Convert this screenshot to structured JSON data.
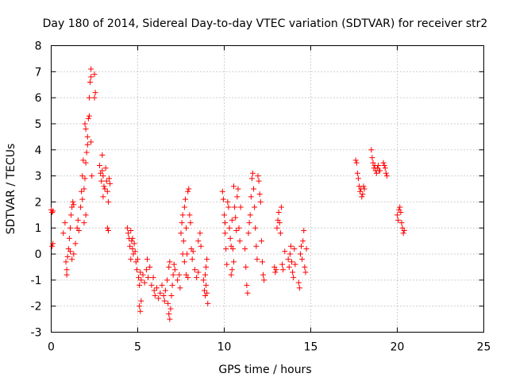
{
  "chart_data": {
    "type": "scatter",
    "title": "Day 180 of 2014, Sidereal Day-to-day VTEC variation (SDTVAR) for receiver str2",
    "xlabel": "GPS time / hours",
    "ylabel": "SDTVAR / TECUs",
    "xlim": [
      0,
      25
    ],
    "ylim": [
      -3,
      8
    ],
    "xticks": [
      0,
      5,
      10,
      15,
      20,
      25
    ],
    "yticks": [
      -3,
      -2,
      -1,
      0,
      1,
      2,
      3,
      4,
      5,
      6,
      7,
      8
    ],
    "grid": true,
    "marker": "+",
    "marker_color": "#ff0000",
    "series": [
      {
        "name": "SDTVAR",
        "points": [
          [
            0.0,
            1.7
          ],
          [
            0.05,
            1.6
          ],
          [
            0.1,
            0.4
          ],
          [
            0.05,
            0.3
          ],
          [
            0.1,
            1.65
          ],
          [
            0.7,
            0.8
          ],
          [
            0.8,
            1.2
          ],
          [
            0.85,
            -0.3
          ],
          [
            0.9,
            -0.6
          ],
          [
            0.9,
            -0.8
          ],
          [
            0.95,
            -0.1
          ],
          [
            1.0,
            0.2
          ],
          [
            1.05,
            0.6
          ],
          [
            1.1,
            1.0
          ],
          [
            1.15,
            1.5
          ],
          [
            1.2,
            1.8
          ],
          [
            1.25,
            2.0
          ],
          [
            1.3,
            1.9
          ],
          [
            1.1,
            0.1
          ],
          [
            1.2,
            -0.2
          ],
          [
            1.3,
            0.0
          ],
          [
            1.4,
            0.4
          ],
          [
            1.5,
            1.0
          ],
          [
            1.55,
            1.3
          ],
          [
            1.6,
            0.9
          ],
          [
            1.7,
            1.8
          ],
          [
            1.75,
            2.4
          ],
          [
            1.8,
            3.0
          ],
          [
            1.85,
            3.6
          ],
          [
            1.9,
            2.5
          ],
          [
            1.95,
            2.9
          ],
          [
            2.0,
            3.5
          ],
          [
            2.05,
            3.9
          ],
          [
            2.1,
            4.5
          ],
          [
            2.0,
            4.8
          ],
          [
            1.95,
            5.0
          ],
          [
            2.1,
            4.2
          ],
          [
            2.15,
            5.2
          ],
          [
            2.2,
            6.0
          ],
          [
            2.25,
            6.6
          ],
          [
            2.3,
            7.1
          ],
          [
            2.3,
            6.8
          ],
          [
            2.2,
            5.3
          ],
          [
            2.3,
            4.3
          ],
          [
            2.35,
            3.0
          ],
          [
            2.0,
            1.5
          ],
          [
            1.9,
            1.2
          ],
          [
            1.8,
            2.1
          ],
          [
            2.5,
            6.9
          ],
          [
            2.55,
            6.2
          ],
          [
            2.5,
            6.0
          ],
          [
            2.8,
            3.4
          ],
          [
            2.85,
            3.1
          ],
          [
            2.9,
            2.8
          ],
          [
            2.95,
            3.2
          ],
          [
            3.0,
            3.0
          ],
          [
            3.05,
            2.6
          ],
          [
            3.1,
            2.5
          ],
          [
            3.15,
            3.3
          ],
          [
            3.2,
            2.8
          ],
          [
            3.25,
            2.4
          ],
          [
            3.3,
            2.0
          ],
          [
            3.35,
            2.9
          ],
          [
            3.4,
            2.7
          ],
          [
            2.95,
            3.8
          ],
          [
            3.0,
            2.2
          ],
          [
            3.25,
            1.0
          ],
          [
            3.3,
            0.9
          ],
          [
            4.4,
            1.0
          ],
          [
            4.45,
            0.8
          ],
          [
            4.5,
            0.6
          ],
          [
            4.55,
            0.3
          ],
          [
            4.6,
            0.9
          ],
          [
            4.65,
            0.5
          ],
          [
            4.7,
            0.2
          ],
          [
            4.75,
            0.0
          ],
          [
            4.8,
            0.4
          ],
          [
            4.85,
            0.1
          ],
          [
            4.9,
            -0.3
          ],
          [
            4.95,
            -0.6
          ],
          [
            5.0,
            -0.2
          ],
          [
            4.6,
            -0.2
          ],
          [
            4.7,
            0.6
          ],
          [
            5.05,
            -0.9
          ],
          [
            5.1,
            -1.2
          ],
          [
            5.15,
            -0.7
          ],
          [
            5.2,
            -1.0
          ],
          [
            5.1,
            -2.0
          ],
          [
            5.15,
            -2.2
          ],
          [
            5.2,
            -1.8
          ],
          [
            5.3,
            -0.8
          ],
          [
            5.4,
            -1.1
          ],
          [
            5.5,
            -0.6
          ],
          [
            5.55,
            -0.2
          ],
          [
            5.6,
            -0.9
          ],
          [
            5.7,
            -0.5
          ],
          [
            5.8,
            -1.2
          ],
          [
            5.9,
            -0.9
          ],
          [
            5.95,
            -1.4
          ],
          [
            6.0,
            -1.6
          ],
          [
            6.1,
            -1.3
          ],
          [
            6.2,
            -1.7
          ],
          [
            6.3,
            -1.5
          ],
          [
            6.4,
            -1.2
          ],
          [
            6.5,
            -1.6
          ],
          [
            6.55,
            -1.8
          ],
          [
            6.6,
            -1.4
          ],
          [
            6.7,
            -1.0
          ],
          [
            6.8,
            -0.5
          ],
          [
            6.85,
            -0.3
          ],
          [
            6.75,
            -1.9
          ],
          [
            6.8,
            -2.3
          ],
          [
            6.85,
            -2.5
          ],
          [
            6.9,
            -2.1
          ],
          [
            6.95,
            -1.6
          ],
          [
            7.0,
            -1.2
          ],
          [
            7.05,
            -0.8
          ],
          [
            7.1,
            -0.4
          ],
          [
            7.15,
            -0.6
          ],
          [
            7.3,
            -1.0
          ],
          [
            7.4,
            -0.8
          ],
          [
            7.45,
            -1.3
          ],
          [
            7.5,
            0.8
          ],
          [
            7.55,
            1.2
          ],
          [
            7.6,
            1.5
          ],
          [
            7.65,
            0.5
          ],
          [
            7.7,
            1.8
          ],
          [
            7.75,
            2.1
          ],
          [
            7.8,
            1.0
          ],
          [
            7.85,
            0.0
          ],
          [
            7.9,
            2.4
          ],
          [
            7.95,
            2.5
          ],
          [
            8.0,
            1.5
          ],
          [
            8.05,
            1.2
          ],
          [
            8.1,
            0.2
          ],
          [
            8.15,
            -0.2
          ],
          [
            8.2,
            0.1
          ],
          [
            7.6,
            0.0
          ],
          [
            7.7,
            -0.3
          ],
          [
            7.8,
            -0.8
          ],
          [
            7.9,
            -0.9
          ],
          [
            8.3,
            -0.6
          ],
          [
            8.4,
            -0.9
          ],
          [
            8.5,
            -0.7
          ],
          [
            8.5,
            0.5
          ],
          [
            8.6,
            0.8
          ],
          [
            8.65,
            0.3
          ],
          [
            8.8,
            -1.0
          ],
          [
            8.85,
            -1.4
          ],
          [
            8.9,
            -1.6
          ],
          [
            8.95,
            -1.2
          ],
          [
            9.0,
            -1.5
          ],
          [
            9.05,
            -1.9
          ],
          [
            8.95,
            -0.5
          ],
          [
            9.0,
            -0.2
          ],
          [
            8.9,
            -0.8
          ],
          [
            9.9,
            2.4
          ],
          [
            9.95,
            2.1
          ],
          [
            10.0,
            1.5
          ],
          [
            10.05,
            0.8
          ],
          [
            10.1,
            0.2
          ],
          [
            10.15,
            -0.4
          ],
          [
            10.05,
            1.2
          ],
          [
            10.2,
            2.0
          ],
          [
            10.25,
            1.8
          ],
          [
            10.3,
            1.0
          ],
          [
            10.35,
            0.6
          ],
          [
            10.4,
            0.3
          ],
          [
            10.45,
            1.3
          ],
          [
            10.5,
            0.2
          ],
          [
            10.55,
            -0.3
          ],
          [
            10.6,
            1.8
          ],
          [
            10.65,
            1.4
          ],
          [
            10.7,
            0.9
          ],
          [
            10.75,
            2.2
          ],
          [
            10.8,
            2.5
          ],
          [
            10.85,
            1.0
          ],
          [
            10.9,
            0.5
          ],
          [
            10.95,
            1.8
          ],
          [
            10.4,
            -0.8
          ],
          [
            10.45,
            -0.6
          ],
          [
            10.55,
            2.6
          ],
          [
            11.2,
            0.2
          ],
          [
            11.25,
            -0.5
          ],
          [
            11.3,
            -1.2
          ],
          [
            11.35,
            -1.5
          ],
          [
            11.4,
            0.8
          ],
          [
            11.45,
            1.2
          ],
          [
            11.5,
            1.5
          ],
          [
            11.55,
            2.2
          ],
          [
            11.6,
            2.9
          ],
          [
            11.65,
            3.1
          ],
          [
            11.7,
            2.5
          ],
          [
            11.75,
            1.8
          ],
          [
            11.8,
            1.0
          ],
          [
            11.85,
            0.3
          ],
          [
            11.9,
            -0.2
          ],
          [
            11.95,
            3.0
          ],
          [
            12.0,
            2.8
          ],
          [
            12.05,
            2.3
          ],
          [
            12.1,
            2.0
          ],
          [
            12.15,
            0.5
          ],
          [
            12.2,
            -0.3
          ],
          [
            12.25,
            -0.8
          ],
          [
            12.3,
            -1.0
          ],
          [
            12.9,
            -0.5
          ],
          [
            12.95,
            -0.7
          ],
          [
            13.0,
            -0.6
          ],
          [
            13.05,
            1.0
          ],
          [
            13.1,
            1.3
          ],
          [
            13.15,
            1.6
          ],
          [
            13.2,
            1.2
          ],
          [
            13.25,
            0.8
          ],
          [
            13.3,
            1.8
          ],
          [
            13.35,
            -0.4
          ],
          [
            13.4,
            -0.6
          ],
          [
            13.5,
            0.1
          ],
          [
            13.7,
            -0.2
          ],
          [
            13.75,
            -0.5
          ],
          [
            13.8,
            0.0
          ],
          [
            13.85,
            0.3
          ],
          [
            13.9,
            -0.3
          ],
          [
            13.95,
            -0.7
          ],
          [
            14.0,
            -0.9
          ],
          [
            14.05,
            0.2
          ],
          [
            14.1,
            -0.4
          ],
          [
            14.3,
            -1.1
          ],
          [
            14.35,
            -1.3
          ],
          [
            14.4,
            0.0
          ],
          [
            14.45,
            0.3
          ],
          [
            14.5,
            -0.2
          ],
          [
            14.55,
            0.5
          ],
          [
            14.6,
            0.9
          ],
          [
            14.65,
            -0.5
          ],
          [
            14.7,
            -0.7
          ],
          [
            14.75,
            0.2
          ],
          [
            17.6,
            3.6
          ],
          [
            17.65,
            3.5
          ],
          [
            17.7,
            3.1
          ],
          [
            17.75,
            2.9
          ],
          [
            17.8,
            2.6
          ],
          [
            17.85,
            2.4
          ],
          [
            17.9,
            2.5
          ],
          [
            17.95,
            2.2
          ],
          [
            18.0,
            2.3
          ],
          [
            18.05,
            2.6
          ],
          [
            18.1,
            2.5
          ],
          [
            18.5,
            4.0
          ],
          [
            18.55,
            3.7
          ],
          [
            18.6,
            3.5
          ],
          [
            18.65,
            3.3
          ],
          [
            18.7,
            3.4
          ],
          [
            18.75,
            3.2
          ],
          [
            18.8,
            3.1
          ],
          [
            18.85,
            3.3
          ],
          [
            18.9,
            3.4
          ],
          [
            18.95,
            3.2
          ],
          [
            19.0,
            3.2
          ],
          [
            19.2,
            3.5
          ],
          [
            19.25,
            3.4
          ],
          [
            19.3,
            3.3
          ],
          [
            19.35,
            3.1
          ],
          [
            19.4,
            3.0
          ],
          [
            20.0,
            1.5
          ],
          [
            20.05,
            1.3
          ],
          [
            20.1,
            1.7
          ],
          [
            20.15,
            1.8
          ],
          [
            20.2,
            1.6
          ],
          [
            20.25,
            1.2
          ],
          [
            20.3,
            1.0
          ],
          [
            20.35,
            0.8
          ],
          [
            20.4,
            0.9
          ]
        ]
      }
    ]
  }
}
